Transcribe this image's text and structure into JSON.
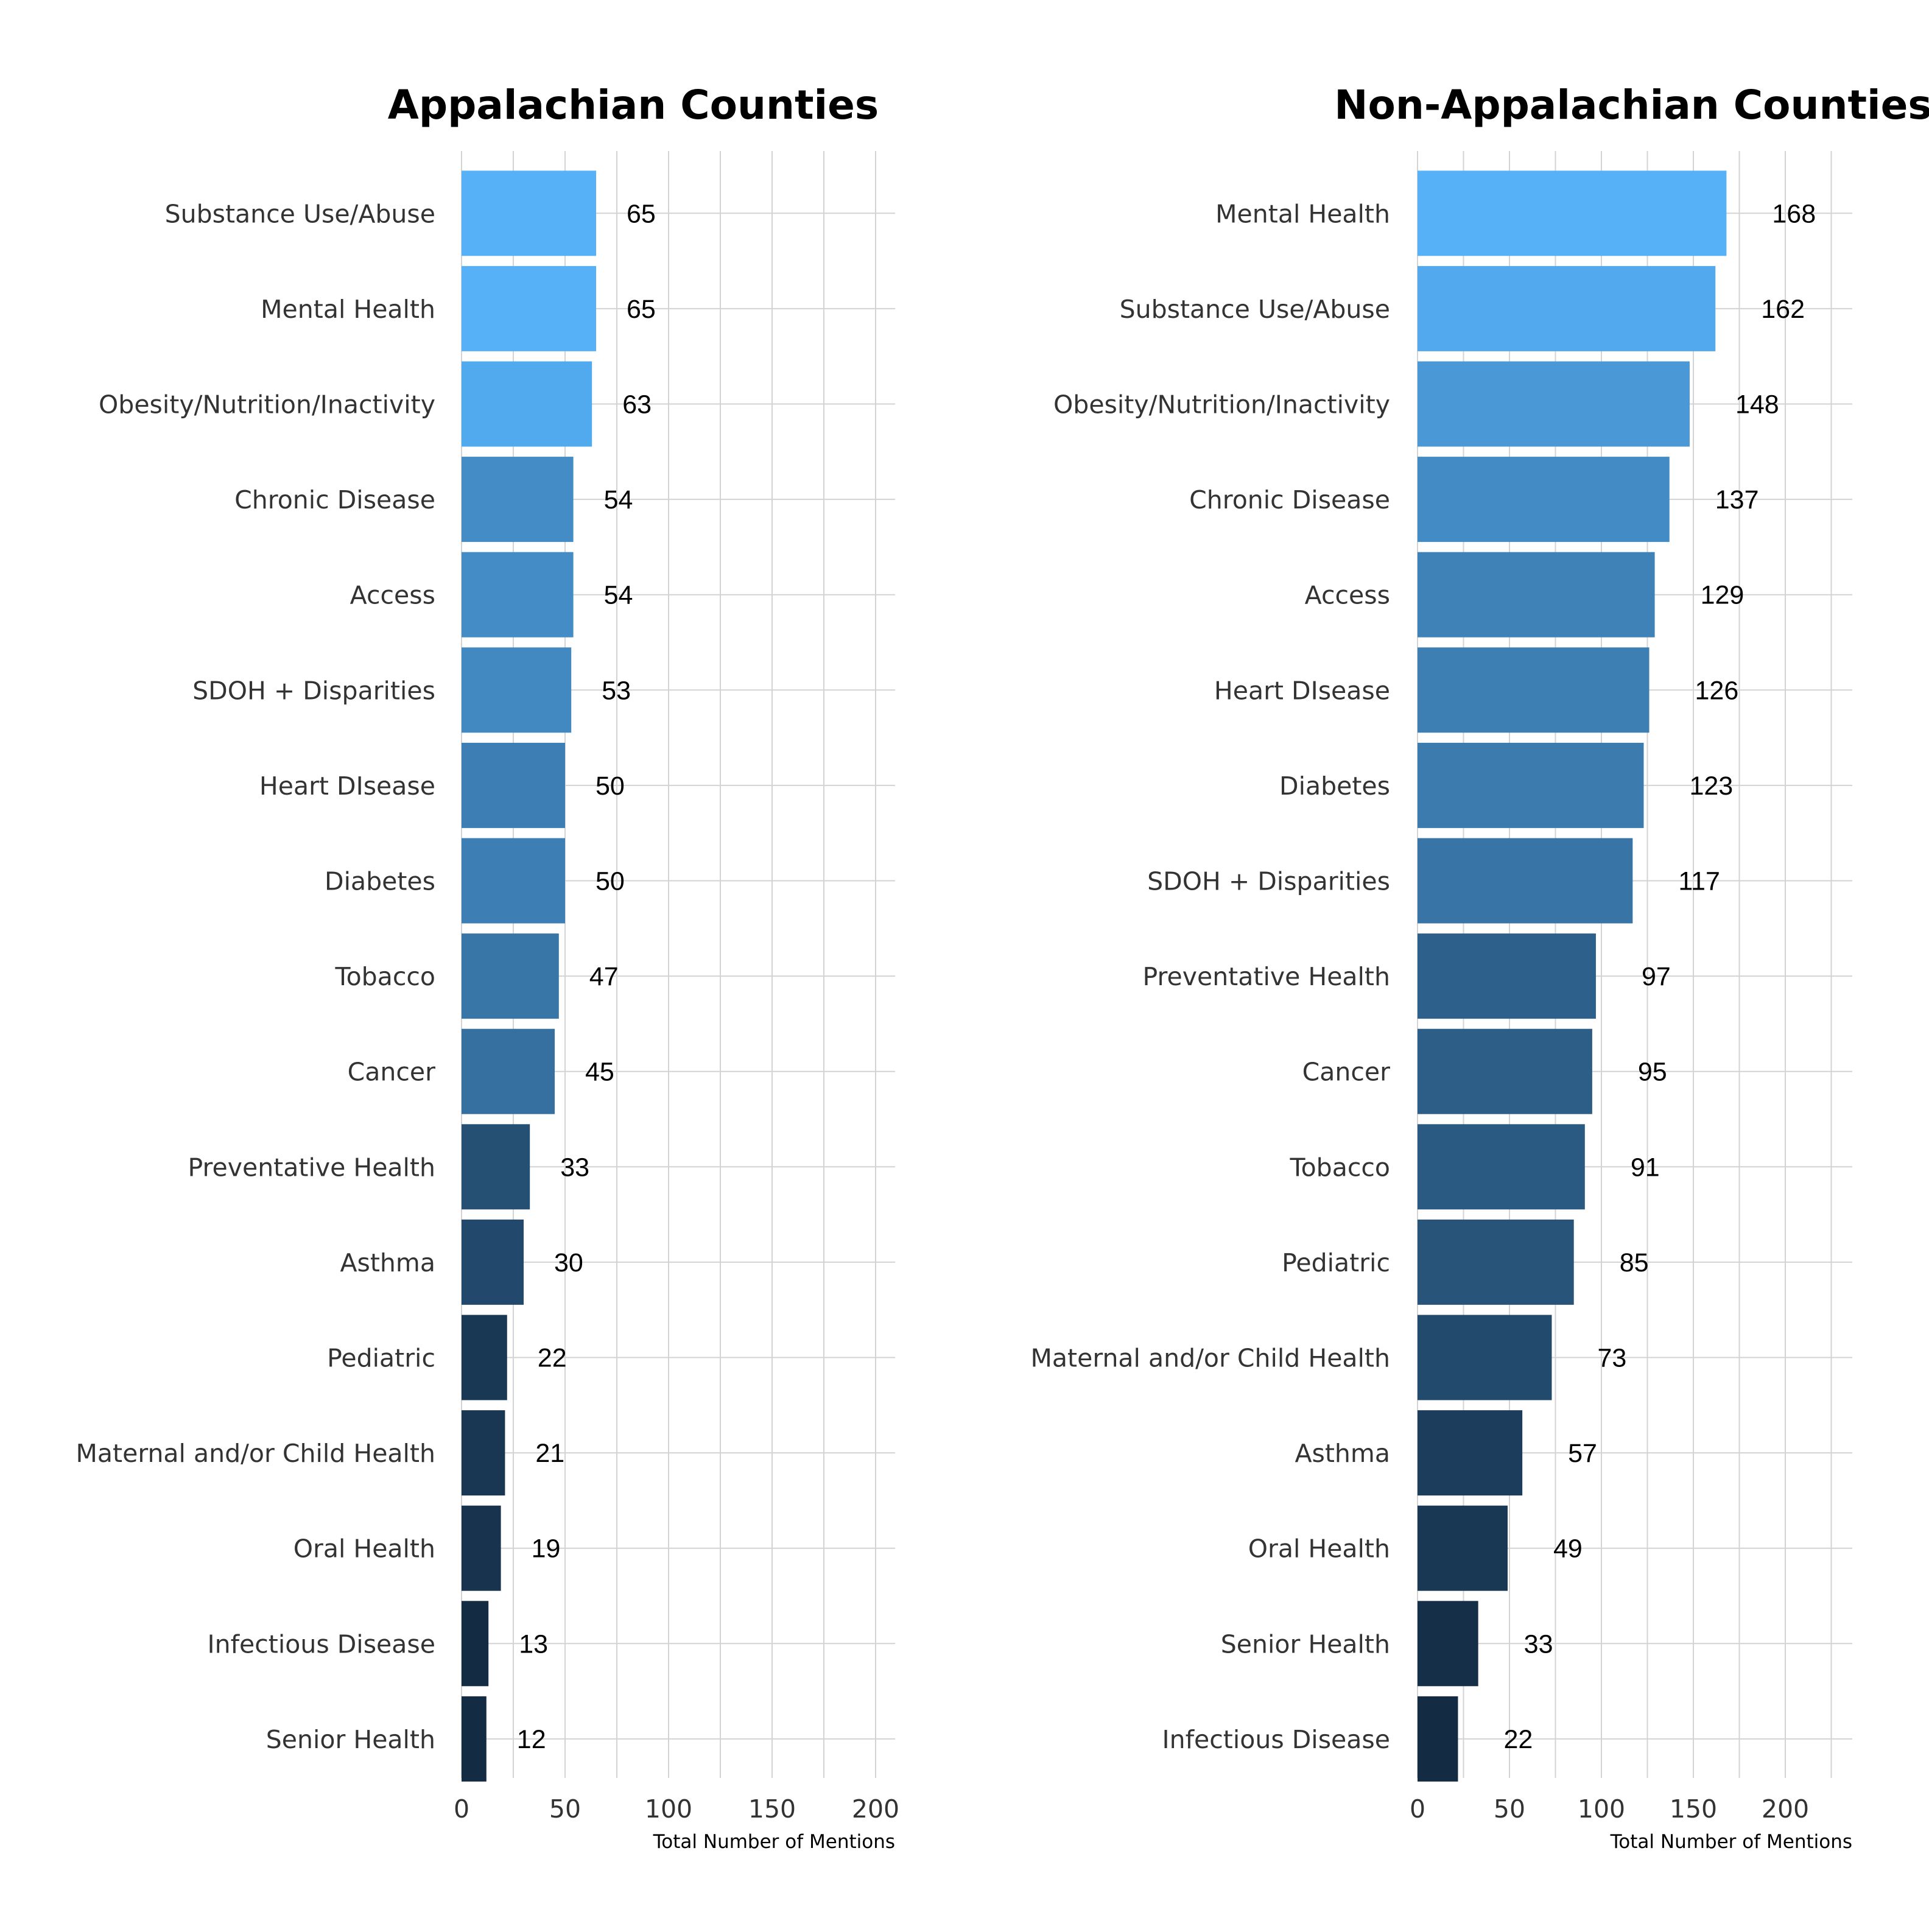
{
  "chart_data": [
    {
      "type": "bar",
      "orientation": "horizontal",
      "title": "Appalachian Counties",
      "xlabel": "Total Number of Mentions",
      "ylabel": "",
      "xlim": [
        0,
        210
      ],
      "xticks": [
        0,
        50,
        100,
        150,
        200
      ],
      "xtick_labels": [
        "0",
        "50",
        "100",
        "150",
        "200"
      ],
      "grid": true,
      "categories": [
        "Substance Use/Abuse",
        "Mental Health",
        "Obesity/Nutrition/Inactivity",
        "Chronic Disease",
        "Access",
        "SDOH + Disparities",
        "Heart DIsease",
        "Diabetes",
        "Tobacco",
        "Cancer",
        "Preventative Health",
        "Asthma",
        "Pediatric",
        "Maternal and/or Child Health",
        "Oral Health",
        "Infectious Disease",
        "Senior Health"
      ],
      "values": [
        65,
        65,
        63,
        54,
        54,
        53,
        50,
        50,
        47,
        45,
        33,
        30,
        22,
        21,
        19,
        13,
        12
      ],
      "value_labels": [
        "65",
        "65",
        "63",
        "54",
        "54",
        "53",
        "50",
        "50",
        "47",
        "45",
        "33",
        "30",
        "22",
        "21",
        "19",
        "13",
        "12"
      ],
      "color_scale": {
        "low": "#132B43",
        "high": "#56B1F7"
      }
    },
    {
      "type": "bar",
      "orientation": "horizontal",
      "title": "Non-Appalachian Counties",
      "xlabel": "Total Number of Mentions",
      "ylabel": "",
      "xlim": [
        0,
        235
      ],
      "xticks": [
        0,
        50,
        100,
        150,
        200
      ],
      "xtick_labels": [
        "0",
        "50",
        "100",
        "150",
        "200"
      ],
      "grid": true,
      "categories": [
        "Mental Health",
        "Substance Use/Abuse",
        "Obesity/Nutrition/Inactivity",
        "Chronic Disease",
        "Access",
        "Heart DIsease",
        "Diabetes",
        "SDOH + Disparities",
        "Preventative Health",
        "Cancer",
        "Tobacco",
        "Pediatric",
        "Maternal and/or Child Health",
        "Asthma",
        "Oral Health",
        "Senior Health",
        "Infectious Disease"
      ],
      "values": [
        168,
        162,
        148,
        137,
        129,
        126,
        123,
        117,
        97,
        95,
        91,
        85,
        73,
        57,
        49,
        33,
        22
      ],
      "value_labels": [
        "168",
        "162",
        "148",
        "137",
        "129",
        "126",
        "123",
        "117",
        "97",
        "95",
        "91",
        "85",
        "73",
        "57",
        "49",
        "33",
        "22"
      ],
      "color_scale": {
        "low": "#132B43",
        "high": "#56B1F7"
      }
    }
  ]
}
